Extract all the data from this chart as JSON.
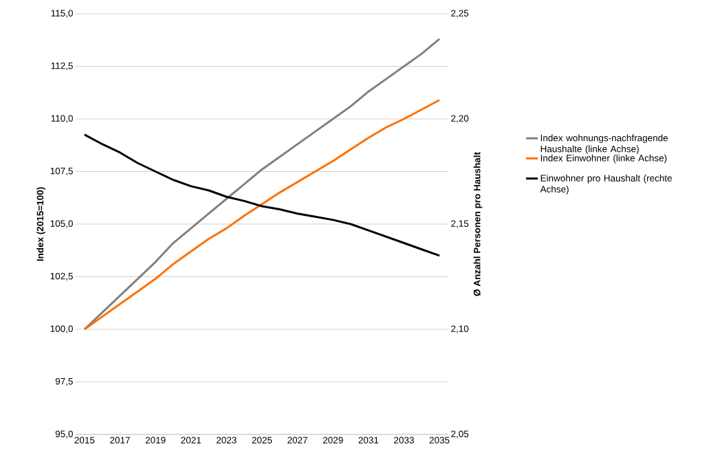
{
  "chart_data": {
    "type": "line",
    "x": [
      2015,
      2016,
      2017,
      2018,
      2019,
      2020,
      2021,
      2022,
      2023,
      2024,
      2025,
      2026,
      2027,
      2028,
      2029,
      2030,
      2031,
      2032,
      2033,
      2034,
      2035
    ],
    "xlim": [
      2014.5,
      2035.5
    ],
    "xticks": [
      2015,
      2017,
      2019,
      2021,
      2023,
      2025,
      2027,
      2029,
      2031,
      2033,
      2035
    ],
    "ylim": [
      95,
      115
    ],
    "yticks": [
      {
        "value": 95,
        "label": "95,0"
      },
      {
        "value": 97.5,
        "label": "97,5"
      },
      {
        "value": 100,
        "label": "100,0"
      },
      {
        "value": 102.5,
        "label": "102,5"
      },
      {
        "value": 105,
        "label": "105,0"
      },
      {
        "value": 107.5,
        "label": "107,5"
      },
      {
        "value": 110,
        "label": "110,0"
      },
      {
        "value": 112.5,
        "label": "112,5"
      },
      {
        "value": 115,
        "label": "115,0"
      }
    ],
    "y2lim": [
      2.05,
      2.25
    ],
    "y2ticks": [
      {
        "value": 2.05,
        "label": "2,05"
      },
      {
        "value": 2.1,
        "label": "2,10"
      },
      {
        "value": 2.15,
        "label": "2,15"
      },
      {
        "value": 2.2,
        "label": "2,20"
      },
      {
        "value": 2.25,
        "label": "2,25"
      }
    ],
    "ylabel": "Index (2015=100)",
    "y2label": "Ø Anzahl Personen pro Haushalt",
    "grid": "y",
    "legend": "right",
    "series": [
      {
        "name": "Index wohnungs-nachfragende Haushalte (linke Achse)",
        "color": "#808080",
        "values": [
          100,
          100.8,
          101.6,
          102.4,
          103.2,
          104.1,
          104.8,
          105.5,
          106.2,
          106.9,
          107.6,
          108.2,
          108.8,
          109.4,
          110.0,
          110.6,
          111.3,
          111.9,
          112.5,
          113.1,
          113.8
        ]
      },
      {
        "name": "Index Einwohner (linke Achse)",
        "color": "#ff7000",
        "values": [
          100,
          100.6,
          101.2,
          101.8,
          102.4,
          103.1,
          103.7,
          104.3,
          104.8,
          105.4,
          105.95,
          106.5,
          107.0,
          107.5,
          108.0,
          108.55,
          109.1,
          109.6,
          110.0,
          110.45,
          110.9
        ]
      },
      {
        "name": "Einwohner pro Haushalt (rechte Achse)",
        "color": "#000000",
        "axis": "y2",
        "values": [
          2.1925,
          2.188,
          2.184,
          2.179,
          2.175,
          2.171,
          2.168,
          2.166,
          2.163,
          2.161,
          2.1585,
          2.157,
          2.155,
          2.1535,
          2.152,
          2.15,
          2.147,
          2.144,
          2.141,
          2.138,
          2.135
        ]
      }
    ]
  }
}
